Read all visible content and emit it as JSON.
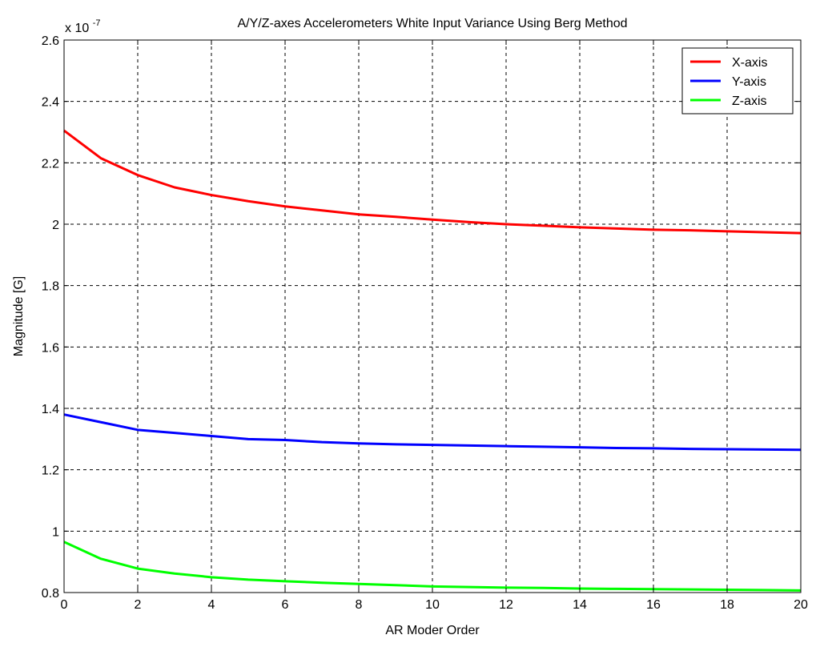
{
  "chart_data": {
    "type": "line",
    "title": "A/Y/Z-axes Accelerometers White Input Variance Using Berg Method",
    "xlabel": "AR Moder Order",
    "ylabel": "Magnitude [G]",
    "y_exponent_label": "x 10",
    "y_exponent_power": "-7",
    "xlim": [
      0,
      20
    ],
    "ylim": [
      0.8,
      2.6
    ],
    "xticks": [
      "0",
      "2",
      "4",
      "6",
      "8",
      "10",
      "12",
      "14",
      "16",
      "18",
      "20"
    ],
    "yticks": [
      "0.8",
      "1",
      "1.2",
      "1.4",
      "1.6",
      "1.8",
      "2",
      "2.2",
      "2.4",
      "2.6"
    ],
    "grid": true,
    "legend_position": "top-right",
    "x": [
      0,
      1,
      2,
      3,
      4,
      5,
      6,
      7,
      8,
      9,
      10,
      11,
      12,
      13,
      14,
      15,
      16,
      17,
      18,
      19,
      20
    ],
    "series": [
      {
        "name": "X-axis",
        "color": "#ff0000",
        "values": [
          2.305,
          2.215,
          2.16,
          2.12,
          2.095,
          2.075,
          2.058,
          2.045,
          2.032,
          2.024,
          2.015,
          2.007,
          2.0,
          1.995,
          1.99,
          1.986,
          1.982,
          1.98,
          1.977,
          1.974,
          1.971
        ]
      },
      {
        "name": "Y-axis",
        "color": "#0000ff",
        "values": [
          1.38,
          1.355,
          1.33,
          1.32,
          1.31,
          1.3,
          1.297,
          1.29,
          1.286,
          1.283,
          1.281,
          1.279,
          1.277,
          1.275,
          1.273,
          1.271,
          1.27,
          1.268,
          1.267,
          1.266,
          1.265
        ]
      },
      {
        "name": "Z-axis",
        "color": "#00ff00",
        "values": [
          0.965,
          0.91,
          0.878,
          0.862,
          0.85,
          0.842,
          0.837,
          0.832,
          0.828,
          0.824,
          0.82,
          0.818,
          0.816,
          0.815,
          0.813,
          0.812,
          0.811,
          0.81,
          0.809,
          0.808,
          0.807
        ]
      }
    ]
  }
}
